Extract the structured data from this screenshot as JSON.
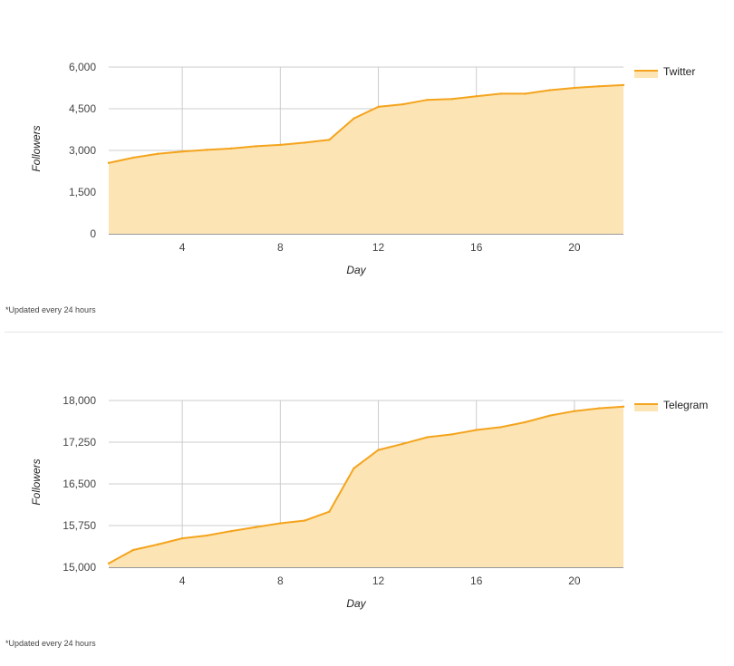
{
  "chart_data": [
    {
      "type": "area",
      "xlabel": "Day",
      "ylabel": "Followers",
      "xlim": [
        1,
        22
      ],
      "ylim": [
        0,
        6000
      ],
      "x_ticks": [
        4,
        8,
        12,
        16,
        20
      ],
      "y_ticks": [
        0,
        1500,
        3000,
        4500,
        6000
      ],
      "y_tick_labels": [
        "0",
        "1,500",
        "3,000",
        "4,500",
        "6,000"
      ],
      "grid": true,
      "legend_position": "right",
      "series": [
        {
          "name": "Twitter",
          "color": "#f4a41d",
          "fill": "#fde4b4",
          "x": [
            1,
            2,
            3,
            4,
            5,
            6,
            7,
            8,
            9,
            10,
            11,
            12,
            13,
            14,
            15,
            16,
            17,
            18,
            19,
            20,
            21,
            22
          ],
          "values": [
            2550,
            2740,
            2880,
            2960,
            3020,
            3070,
            3150,
            3200,
            3280,
            3380,
            4150,
            4570,
            4660,
            4820,
            4850,
            4950,
            5040,
            5040,
            5170,
            5250,
            5310,
            5350
          ]
        }
      ],
      "note": "*Updated every 24 hours"
    },
    {
      "type": "area",
      "xlabel": "Day",
      "ylabel": "Followers",
      "xlim": [
        1,
        22
      ],
      "ylim": [
        15000,
        18000
      ],
      "x_ticks": [
        4,
        8,
        12,
        16,
        20
      ],
      "y_ticks": [
        15000,
        15750,
        16500,
        17250,
        18000
      ],
      "y_tick_labels": [
        "15,000",
        "15,750",
        "16,500",
        "17,250",
        "18,000"
      ],
      "grid": true,
      "legend_position": "right",
      "series": [
        {
          "name": "Telegram",
          "color": "#f4a41d",
          "fill": "#fde4b4",
          "x": [
            1,
            2,
            3,
            4,
            5,
            6,
            7,
            8,
            9,
            10,
            11,
            12,
            13,
            14,
            15,
            16,
            17,
            18,
            19,
            20,
            21,
            22
          ],
          "values": [
            15070,
            15310,
            15410,
            15520,
            15570,
            15650,
            15720,
            15790,
            15840,
            16000,
            16780,
            17110,
            17220,
            17340,
            17390,
            17470,
            17520,
            17610,
            17730,
            17810,
            17860,
            17890
          ]
        }
      ],
      "note": "*Updated every 24 hours"
    }
  ]
}
